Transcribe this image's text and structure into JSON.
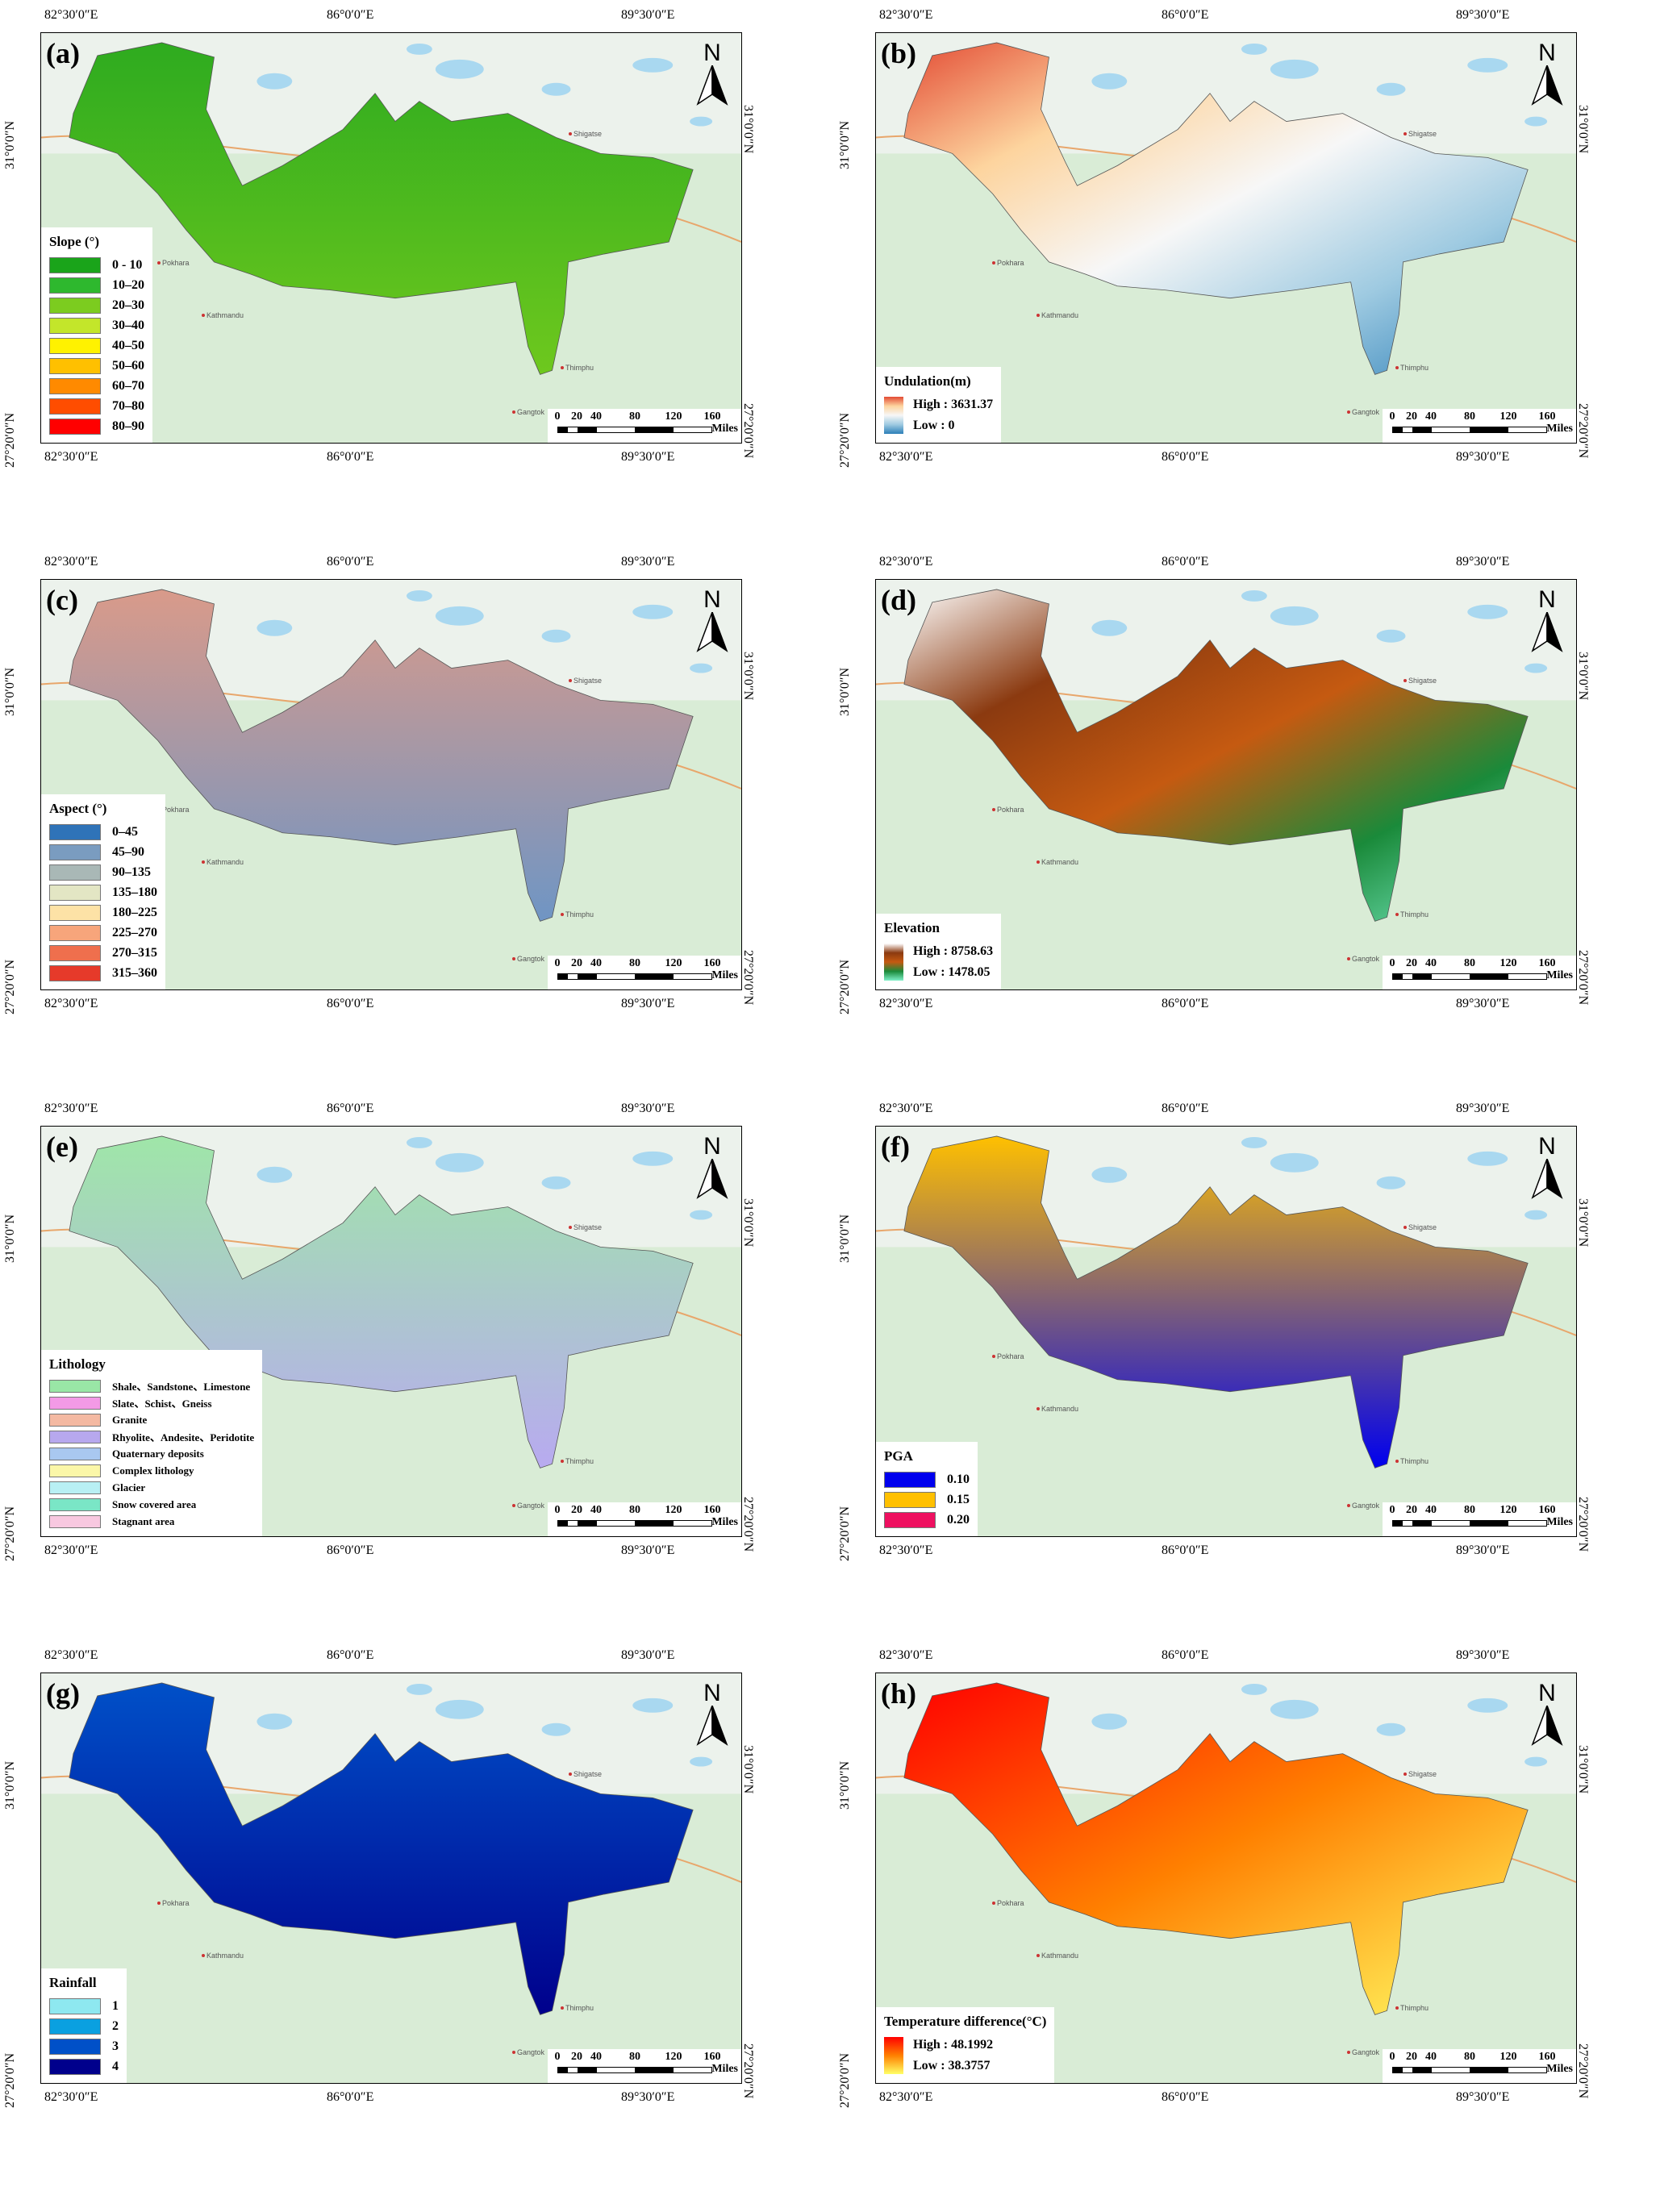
{
  "ticks": {
    "top": [
      "82°30′0″E",
      "86°0′0″E",
      "89°30′0″E"
    ],
    "bottom": [
      "82°30′0″E",
      "86°0′0″E",
      "89°30′0″E"
    ],
    "left": [
      "31°0′0″N",
      "27°20′0″N"
    ],
    "right": [
      "31°0′0″N",
      "27°20′0″N"
    ]
  },
  "north_label": "N",
  "scalebar": {
    "numbers": [
      "0",
      "20",
      "40",
      "80",
      "120",
      "160"
    ],
    "unit": "Miles"
  },
  "places": [
    "Pokhara",
    "Kathmandu",
    "Gangtok",
    "Thimphu",
    "Shigatse"
  ],
  "colors": {
    "basemap_green": "#d9ecd6",
    "water": "#a9d8f0",
    "border": "#e8a66b"
  },
  "panels": [
    {
      "id": "a",
      "label": "(a)",
      "legend_type": "classes",
      "legend_title": "Slope (°)",
      "classes": [
        {
          "label": "0 - 10",
          "color": "#1aa41a"
        },
        {
          "label": "10–20",
          "color": "#2eb82e"
        },
        {
          "label": "20–30",
          "color": "#7ccc1f"
        },
        {
          "label": "30–40",
          "color": "#c3e62a"
        },
        {
          "label": "40–50",
          "color": "#fff200"
        },
        {
          "label": "50–60",
          "color": "#ffc000"
        },
        {
          "label": "60–70",
          "color": "#ff8a00"
        },
        {
          "label": "70–80",
          "color": "#ff4d00"
        },
        {
          "label": "80–90",
          "color": "#ff0000"
        }
      ],
      "region_fill": "#2eab1f",
      "region_fill2": "#6ec81e"
    },
    {
      "id": "b",
      "label": "(b)",
      "legend_type": "gradient",
      "legend_title": "Undulation(m)",
      "high": "High : 3631.37",
      "low": "Low : 0",
      "gradient": [
        "#e34a33",
        "#fdd49e",
        "#f7f7f7",
        "#9ecae1",
        "#2c7fb8"
      ],
      "region_fill": "#3a7fc0",
      "region_fill2": "#d9c39a"
    },
    {
      "id": "c",
      "label": "(c)",
      "legend_type": "classes",
      "legend_title": "Aspect (°)",
      "classes": [
        {
          "label": "0–45",
          "color": "#2f73b8"
        },
        {
          "label": "45–90",
          "color": "#7a9cc0"
        },
        {
          "label": "90–135",
          "color": "#a9b8b6"
        },
        {
          "label": "135–180",
          "color": "#e3e6c4"
        },
        {
          "label": "180–225",
          "color": "#fde2a6"
        },
        {
          "label": "225–270",
          "color": "#f7a57b"
        },
        {
          "label": "270–315",
          "color": "#ef6f4d"
        },
        {
          "label": "315–360",
          "color": "#e63a2a"
        }
      ],
      "region_fill": "#d99a8a",
      "region_fill2": "#6f95c4"
    },
    {
      "id": "d",
      "label": "(d)",
      "legend_type": "gradient",
      "legend_title": "Elevation",
      "high": "High : 8758.63",
      "low": "Low : 1478.05",
      "gradient": [
        "#ffffff",
        "#8b3a10",
        "#c55a11",
        "#1a8a3a",
        "#7ef0c8"
      ],
      "region_fill": "#9a3b0c",
      "region_fill2": "#2e9a3a"
    },
    {
      "id": "e",
      "label": "(e)",
      "legend_type": "classes_small",
      "legend_title": "Lithology",
      "classes": [
        {
          "label": "Shale、Sandstone、Limestone",
          "color": "#99e6a6"
        },
        {
          "label": "Slate、Schist、Gneiss",
          "color": "#f39ae6"
        },
        {
          "label": "Granite",
          "color": "#f4b9a2"
        },
        {
          "label": "Rhyolite、Andesite、Peridotite",
          "color": "#b7a8ee"
        },
        {
          "label": "Quaternary deposits",
          "color": "#a9c8f0"
        },
        {
          "label": "Complex lithology",
          "color": "#fbf7a8"
        },
        {
          "label": "Glacier",
          "color": "#b8f0f4"
        },
        {
          "label": "Snow covered area",
          "color": "#7ae6c6"
        },
        {
          "label": "Stagnant area",
          "color": "#f8c8e0"
        }
      ],
      "region_fill": "#9fe6a8",
      "region_fill2": "#b8aaf0"
    },
    {
      "id": "f",
      "label": "(f)",
      "legend_type": "classes",
      "legend_title": "PGA",
      "classes": [
        {
          "label": "0.10",
          "color": "#0000ee"
        },
        {
          "label": "0.15",
          "color": "#ffc000"
        },
        {
          "label": "0.20",
          "color": "#ee1060"
        }
      ],
      "region_fill": "#ffc000",
      "region_fill2": "#0000ee"
    },
    {
      "id": "g",
      "label": "(g)",
      "legend_type": "classes",
      "legend_title": "Rainfall",
      "classes": [
        {
          "label": "1",
          "color": "#8ee8f0"
        },
        {
          "label": "2",
          "color": "#0aa0e0"
        },
        {
          "label": "3",
          "color": "#0050c8"
        },
        {
          "label": "4",
          "color": "#00008c"
        }
      ],
      "region_fill": "#0050c8",
      "region_fill2": "#00008c"
    },
    {
      "id": "h",
      "label": "(h)",
      "legend_type": "gradient",
      "legend_title": "Temperature difference(°C)",
      "high": "High : 48.1992",
      "low": "Low : 38.3757",
      "gradient": [
        "#ff0000",
        "#ff8000",
        "#ffff66"
      ],
      "region_fill": "#ff7a00",
      "region_fill2": "#ffe000"
    }
  ]
}
